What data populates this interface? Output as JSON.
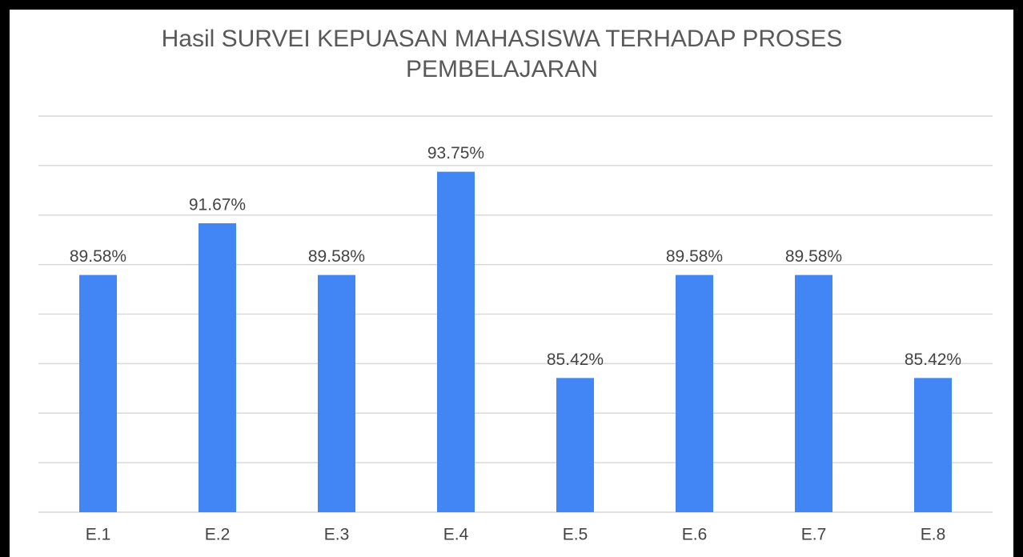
{
  "chart_data": {
    "type": "bar",
    "title": "Hasil SURVEI KEPUASAN MAHASISWA TERHADAP PROSES PEMBELAJARAN",
    "categories": [
      "E.1",
      "E.2",
      "E.3",
      "E.4",
      "E.5",
      "E.6",
      "E.7",
      "E.8"
    ],
    "values": [
      89.58,
      91.67,
      89.58,
      93.75,
      85.42,
      89.58,
      89.58,
      85.42
    ],
    "value_labels": [
      "89.58%",
      "91.67%",
      "89.58%",
      "93.75%",
      "85.42%",
      "89.58%",
      "89.58%",
      "85.42%"
    ],
    "color": "#4285f4",
    "ylim": [
      80,
      96
    ],
    "yticks": [
      80,
      82,
      84,
      86,
      88,
      90,
      92,
      94,
      96
    ],
    "grid": true
  }
}
